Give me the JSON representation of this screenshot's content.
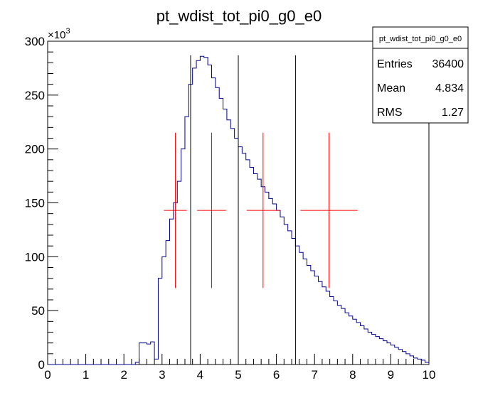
{
  "chart_data": {
    "type": "histogram",
    "title": "pt_wdist_tot_pi0_g0_e0",
    "xlabel": "",
    "ylabel": "",
    "xlim": [
      0,
      10
    ],
    "ylim": [
      0,
      300
    ],
    "y_multiplier_label": "×10",
    "y_multiplier_exponent": "3",
    "x_ticks": [
      "0",
      "1",
      "2",
      "3",
      "4",
      "5",
      "6",
      "7",
      "8",
      "9",
      "10"
    ],
    "y_ticks": [
      "0",
      "50",
      "100",
      "150",
      "200",
      "250",
      "300"
    ],
    "bin_width": 0.1,
    "histogram_color": "#00008b",
    "bin_low_edges": [
      0.0,
      0.1,
      0.2,
      0.3,
      0.4,
      0.5,
      0.6,
      0.7,
      0.8,
      0.9,
      1.0,
      1.1,
      1.2,
      1.3,
      1.4,
      1.5,
      1.6,
      1.7,
      1.8,
      1.9,
      2.0,
      2.1,
      2.2,
      2.3,
      2.4,
      2.5,
      2.6,
      2.7,
      2.8,
      2.9,
      3.0,
      3.1,
      3.2,
      3.3,
      3.4,
      3.5,
      3.6,
      3.7,
      3.8,
      3.9,
      4.0,
      4.1,
      4.2,
      4.3,
      4.4,
      4.5,
      4.6,
      4.7,
      4.8,
      4.9,
      5.0,
      5.1,
      5.2,
      5.3,
      5.4,
      5.5,
      5.6,
      5.7,
      5.8,
      5.9,
      6.0,
      6.1,
      6.2,
      6.3,
      6.4,
      6.5,
      6.6,
      6.7,
      6.8,
      6.9,
      7.0,
      7.1,
      7.2,
      7.3,
      7.4,
      7.5,
      7.6,
      7.7,
      7.8,
      7.9,
      8.0,
      8.1,
      8.2,
      8.3,
      8.4,
      8.5,
      8.6,
      8.7,
      8.8,
      8.9,
      9.0,
      9.1,
      9.2,
      9.3,
      9.4,
      9.5,
      9.6,
      9.7,
      9.8,
      9.9
    ],
    "values": [
      0,
      0,
      0,
      0,
      0,
      0,
      0,
      0,
      0,
      0,
      0,
      0,
      0,
      0,
      0,
      0,
      0,
      0,
      0,
      0,
      0,
      0,
      0,
      2,
      20,
      20,
      19,
      21,
      5,
      80,
      100,
      115,
      135,
      150,
      170,
      200,
      230,
      260,
      275,
      282,
      286,
      285,
      278,
      266,
      257,
      247,
      237,
      227,
      219,
      210,
      202,
      196,
      190,
      183,
      177,
      172,
      165,
      160,
      154,
      149,
      143,
      137,
      130,
      124,
      117,
      110,
      104,
      98,
      92,
      87,
      82,
      77,
      72,
      68,
      63,
      59,
      55,
      52,
      48,
      45,
      42,
      39,
      36,
      33,
      30,
      28,
      26,
      24,
      22,
      20,
      18,
      16,
      14,
      12,
      10,
      8,
      6,
      5,
      4,
      2
    ],
    "vertical_lines_x": [
      3.75,
      5.0,
      6.5
    ],
    "crosses_color": "#ff0000",
    "crosses": [
      {
        "x": 3.35,
        "y": 143,
        "x_err": 0.3,
        "y_err": 72
      },
      {
        "x": 4.3,
        "y": 143,
        "x_err": 0.38,
        "y_err": 72
      },
      {
        "x": 5.65,
        "y": 143,
        "x_err": 0.43,
        "y_err": 72
      },
      {
        "x": 7.38,
        "y": 143,
        "x_err": 0.75,
        "y_err": 72
      }
    ]
  },
  "stats_box": {
    "title": "pt_wdist_tot_pi0_g0_e0",
    "rows": [
      {
        "label": "Entries",
        "value": "36400"
      },
      {
        "label": "Mean",
        "value": "4.834"
      },
      {
        "label": "RMS",
        "value": "1.27"
      }
    ]
  }
}
